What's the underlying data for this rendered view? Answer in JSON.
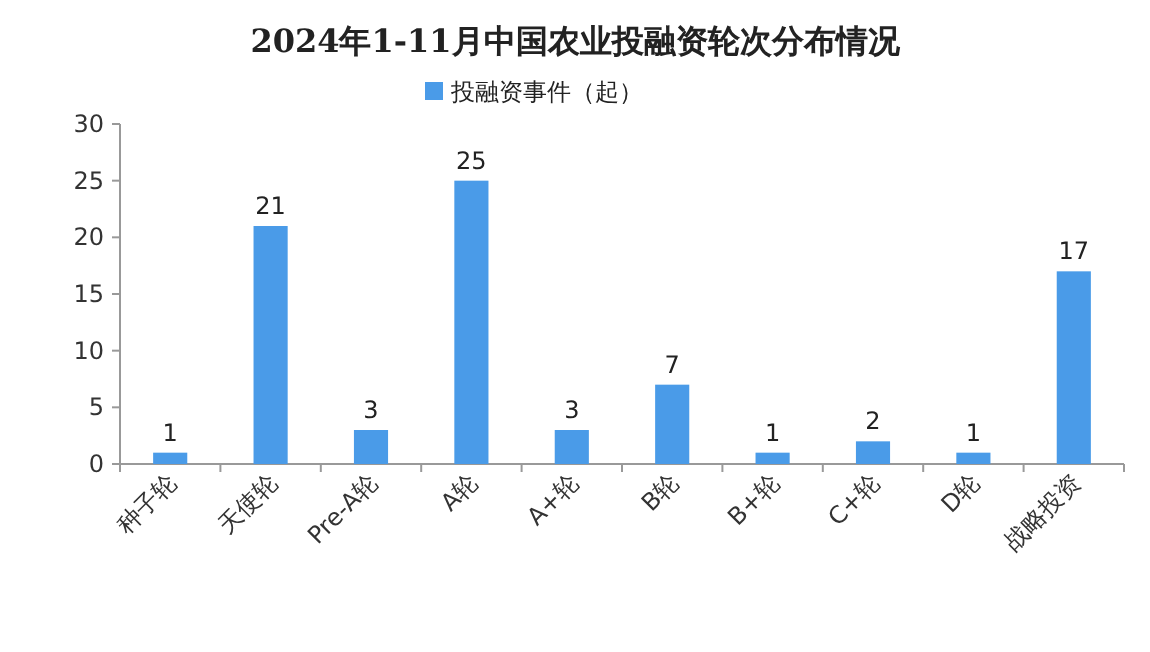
{
  "chart_data": {
    "type": "bar",
    "title": "2024年1-11月中国农业投融资轮次分布情况",
    "categories": [
      "种子轮",
      "天使轮",
      "Pre-A轮",
      "A轮",
      "A+轮",
      "B轮",
      "B+轮",
      "C+轮",
      "D轮",
      "战略投资"
    ],
    "series": [
      {
        "name": "投融资事件（起）",
        "color": "#4a9be8",
        "values": [
          1,
          21,
          3,
          25,
          3,
          7,
          1,
          2,
          1,
          17
        ]
      }
    ],
    "ylim": [
      0,
      30
    ],
    "yticks": [
      0,
      5,
      10,
      15,
      20,
      25,
      30
    ],
    "data_labels": true,
    "legend": "top"
  }
}
